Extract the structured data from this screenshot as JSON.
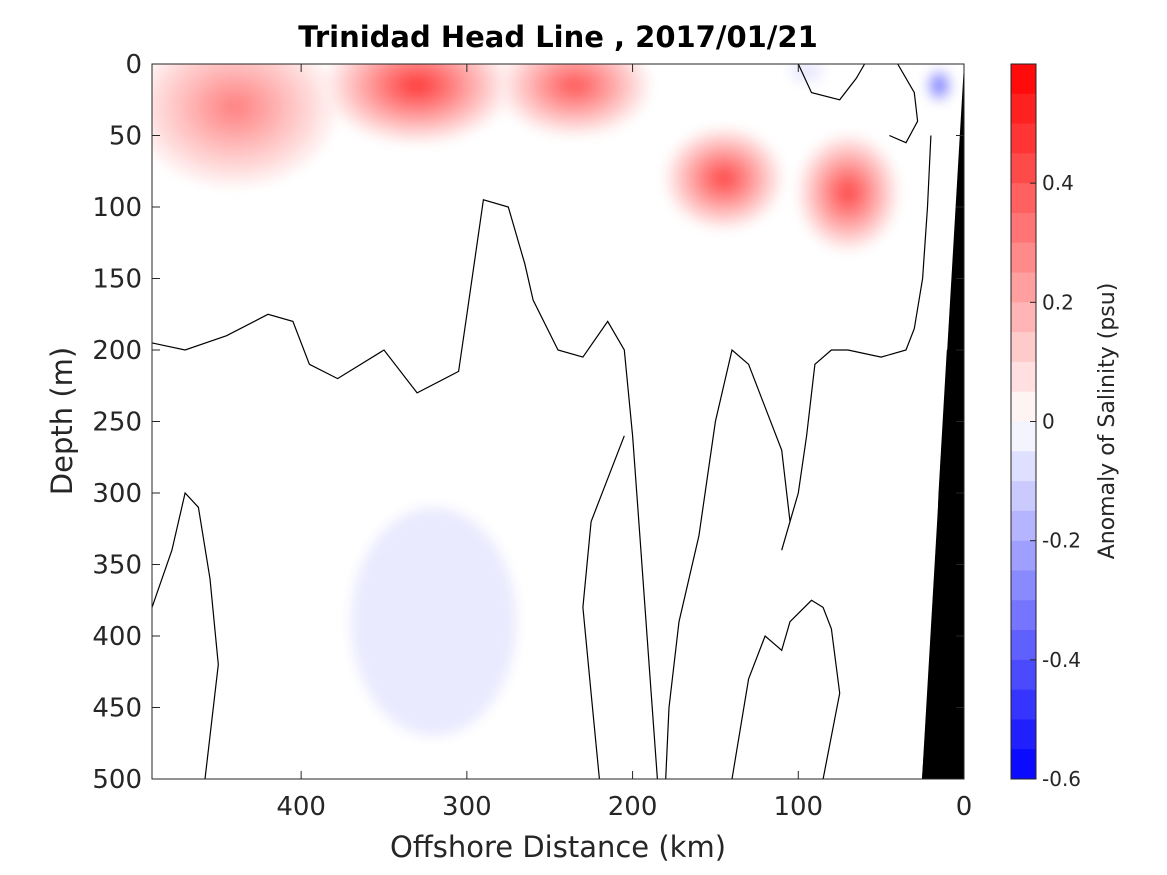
{
  "chart_data": {
    "type": "heatmap",
    "title": "Trinidad Head Line , 2017/01/21",
    "xlabel": "Offshore Distance (km)",
    "ylabel": "Depth (m)",
    "colorbar_label": "Anomaly of Salinity (psu)",
    "xlim": [
      490,
      0
    ],
    "ylim": [
      0,
      500
    ],
    "y_reversed": true,
    "x_reversed": true,
    "xticks": [
      400,
      300,
      200,
      100,
      0
    ],
    "xtick_labels": [
      "400",
      "300",
      "200",
      "100",
      "0"
    ],
    "yticks": [
      0,
      50,
      100,
      150,
      200,
      250,
      300,
      350,
      400,
      450,
      500
    ],
    "ytick_labels": [
      "0",
      "50",
      "100",
      "150",
      "200",
      "250",
      "300",
      "350",
      "400",
      "450",
      "500"
    ],
    "clim": [
      -0.6,
      0.6
    ],
    "colorbar_ticks": [
      0.4,
      0.2,
      0,
      -0.2,
      -0.4,
      -0.6
    ],
    "colorbar_tick_labels": [
      "0.4",
      "0.2",
      "0",
      "-0.2",
      "-0.4",
      "-0.6"
    ],
    "colorbar_levels": 24,
    "colormap": "blue-white-red diverging",
    "color_positive": "#ff0000",
    "color_negative": "#0000ff",
    "color_zero": "#ffffff",
    "bathymetry_color": "#000000",
    "contour_level": 0,
    "anomaly_features": [
      {
        "x": 330,
        "y": 15,
        "value": 0.45,
        "rx": 55,
        "ry": 40
      },
      {
        "x": 235,
        "y": 15,
        "value": 0.38,
        "rx": 45,
        "ry": 35
      },
      {
        "x": 145,
        "y": 80,
        "value": 0.42,
        "rx": 35,
        "ry": 35
      },
      {
        "x": 70,
        "y": 90,
        "value": 0.42,
        "rx": 30,
        "ry": 40
      },
      {
        "x": 440,
        "y": 30,
        "value": 0.28,
        "rx": 60,
        "ry": 55
      },
      {
        "x": 290,
        "y": 180,
        "value": 0.0,
        "rx": 20,
        "ry": 60
      },
      {
        "x": 320,
        "y": 390,
        "value": -0.05,
        "rx": 50,
        "ry": 80
      },
      {
        "x": 95,
        "y": 5,
        "value": -0.05,
        "rx": 10,
        "ry": 8
      },
      {
        "x": 15,
        "y": 15,
        "value": -0.4,
        "rx": 8,
        "ry": 12
      }
    ]
  }
}
